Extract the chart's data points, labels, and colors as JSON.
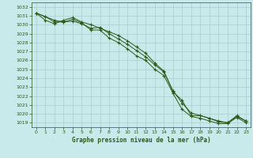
{
  "x": [
    0,
    1,
    2,
    3,
    4,
    5,
    6,
    7,
    8,
    9,
    10,
    11,
    12,
    13,
    14,
    15,
    16,
    17,
    18,
    19,
    20,
    21,
    22,
    23
  ],
  "series1": [
    1031.3,
    1030.9,
    1030.3,
    1030.3,
    1030.6,
    1030.2,
    1029.4,
    1029.4,
    1028.5,
    1028.0,
    1027.3,
    1026.5,
    1026.0,
    1025.0,
    1024.3,
    1022.3,
    1020.5,
    1019.7,
    1019.5,
    1019.2,
    1018.9,
    1018.9,
    1019.6,
    1019.0
  ],
  "series2": [
    1031.3,
    1030.5,
    1030.1,
    1030.5,
    1030.8,
    1030.3,
    1030.0,
    1029.6,
    1029.2,
    1028.8,
    1028.2,
    1027.5,
    1026.8,
    1025.7,
    1024.8,
    1022.5,
    1021.5,
    1019.8,
    1019.8,
    1019.5,
    1019.2,
    1019.0,
    1019.8,
    1019.2
  ],
  "series3": [
    1031.3,
    1030.9,
    1030.5,
    1030.3,
    1030.4,
    1030.1,
    1029.6,
    1029.7,
    1029.0,
    1028.4,
    1027.8,
    1027.1,
    1026.4,
    1025.5,
    1024.7,
    1022.6,
    1021.2,
    1020.1,
    1019.8,
    1019.5,
    1019.1,
    1019.0,
    1019.7,
    1019.2
  ],
  "line_color": "#2d5a1b",
  "bg_color": "#c8eaea",
  "grid_color": "#a8cece",
  "xlabel": "Graphe pression niveau de la mer (hPa)",
  "ylim_min": 1018.5,
  "ylim_max": 1032.5,
  "yticks": [
    1019,
    1020,
    1021,
    1022,
    1023,
    1024,
    1025,
    1026,
    1027,
    1028,
    1029,
    1030,
    1031,
    1032
  ],
  "xticks": [
    0,
    1,
    2,
    3,
    4,
    5,
    6,
    7,
    8,
    9,
    10,
    11,
    12,
    13,
    14,
    15,
    16,
    17,
    18,
    19,
    20,
    21,
    22,
    23
  ]
}
